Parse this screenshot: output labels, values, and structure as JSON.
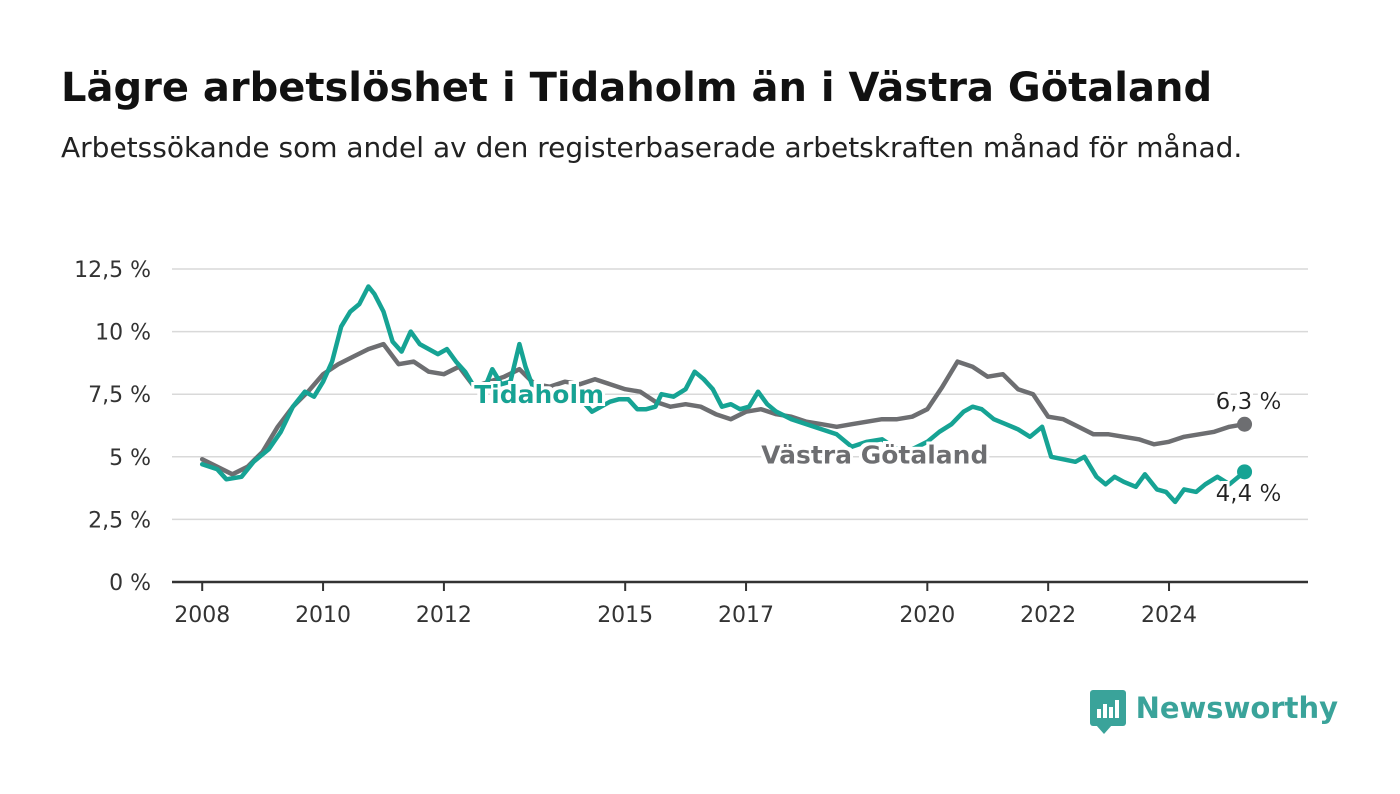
{
  "title": "Lägre arbetslöshet i Tidaholm än i Västra Götaland",
  "subtitle": "Arbetssökande som andel av den registerbaserade arbetskraften månad för månad.",
  "brand": {
    "name": "Newsworthy",
    "color": "#3aa39a"
  },
  "chart_data": {
    "type": "line",
    "ylim": [
      0,
      12.5
    ],
    "xlim": [
      2007.5,
      2026.3
    ],
    "y_ticks": [
      {
        "value": 0,
        "label": "0 %"
      },
      {
        "value": 2.5,
        "label": "2,5 %"
      },
      {
        "value": 5,
        "label": "5 %"
      },
      {
        "value": 7.5,
        "label": "7,5 %"
      },
      {
        "value": 10,
        "label": "10 %"
      },
      {
        "value": 12.5,
        "label": "12,5 %"
      }
    ],
    "x_ticks": [
      {
        "value": 2008,
        "label": "2008"
      },
      {
        "value": 2010,
        "label": "2010"
      },
      {
        "value": 2012,
        "label": "2012"
      },
      {
        "value": 2015,
        "label": "2015"
      },
      {
        "value": 2017,
        "label": "2017"
      },
      {
        "value": 2020,
        "label": "2020"
      },
      {
        "value": 2022,
        "label": "2022"
      },
      {
        "value": 2024,
        "label": "2024"
      }
    ],
    "grid": true,
    "series": [
      {
        "name": "Västra Götaland",
        "color": "#6d6e71",
        "end_label": "6,3 %",
        "label_pos": [
          2017.25,
          5.1
        ],
        "points": [
          [
            2008.0,
            4.9
          ],
          [
            2008.25,
            4.6
          ],
          [
            2008.5,
            4.3
          ],
          [
            2008.75,
            4.6
          ],
          [
            2009.0,
            5.2
          ],
          [
            2009.25,
            6.2
          ],
          [
            2009.5,
            7.0
          ],
          [
            2009.75,
            7.6
          ],
          [
            2010.0,
            8.3
          ],
          [
            2010.25,
            8.7
          ],
          [
            2010.5,
            9.0
          ],
          [
            2010.75,
            9.3
          ],
          [
            2011.0,
            9.5
          ],
          [
            2011.25,
            8.7
          ],
          [
            2011.5,
            8.8
          ],
          [
            2011.75,
            8.4
          ],
          [
            2012.0,
            8.3
          ],
          [
            2012.25,
            8.6
          ],
          [
            2012.5,
            7.8
          ],
          [
            2012.75,
            8.0
          ],
          [
            2013.0,
            8.2
          ],
          [
            2013.25,
            8.5
          ],
          [
            2013.5,
            7.9
          ],
          [
            2013.75,
            7.8
          ],
          [
            2014.0,
            8.0
          ],
          [
            2014.25,
            7.9
          ],
          [
            2014.5,
            8.1
          ],
          [
            2014.75,
            7.9
          ],
          [
            2015.0,
            7.7
          ],
          [
            2015.25,
            7.6
          ],
          [
            2015.5,
            7.2
          ],
          [
            2015.75,
            7.0
          ],
          [
            2016.0,
            7.1
          ],
          [
            2016.25,
            7.0
          ],
          [
            2016.5,
            6.7
          ],
          [
            2016.75,
            6.5
          ],
          [
            2017.0,
            6.8
          ],
          [
            2017.25,
            6.9
          ],
          [
            2017.5,
            6.7
          ],
          [
            2017.75,
            6.6
          ],
          [
            2018.0,
            6.4
          ],
          [
            2018.25,
            6.3
          ],
          [
            2018.5,
            6.2
          ],
          [
            2018.75,
            6.3
          ],
          [
            2019.0,
            6.4
          ],
          [
            2019.25,
            6.5
          ],
          [
            2019.5,
            6.5
          ],
          [
            2019.75,
            6.6
          ],
          [
            2020.0,
            6.9
          ],
          [
            2020.25,
            7.8
          ],
          [
            2020.5,
            8.8
          ],
          [
            2020.75,
            8.6
          ],
          [
            2021.0,
            8.2
          ],
          [
            2021.25,
            8.3
          ],
          [
            2021.5,
            7.7
          ],
          [
            2021.75,
            7.5
          ],
          [
            2022.0,
            6.6
          ],
          [
            2022.25,
            6.5
          ],
          [
            2022.5,
            6.2
          ],
          [
            2022.75,
            5.9
          ],
          [
            2023.0,
            5.9
          ],
          [
            2023.25,
            5.8
          ],
          [
            2023.5,
            5.7
          ],
          [
            2023.75,
            5.5
          ],
          [
            2024.0,
            5.6
          ],
          [
            2024.25,
            5.8
          ],
          [
            2024.5,
            5.9
          ],
          [
            2024.75,
            6.0
          ],
          [
            2025.0,
            6.2
          ],
          [
            2025.25,
            6.3
          ]
        ]
      },
      {
        "name": "Tidaholm",
        "color": "#16a394",
        "end_label": "4,4 %",
        "label_pos": [
          2012.5,
          7.5
        ],
        "points": [
          [
            2008.0,
            4.7
          ],
          [
            2008.25,
            4.5
          ],
          [
            2008.4,
            4.1
          ],
          [
            2008.65,
            4.2
          ],
          [
            2008.85,
            4.8
          ],
          [
            2009.1,
            5.3
          ],
          [
            2009.3,
            6.0
          ],
          [
            2009.5,
            7.0
          ],
          [
            2009.7,
            7.6
          ],
          [
            2009.85,
            7.4
          ],
          [
            2010.0,
            8.0
          ],
          [
            2010.15,
            8.8
          ],
          [
            2010.3,
            10.2
          ],
          [
            2010.45,
            10.8
          ],
          [
            2010.6,
            11.1
          ],
          [
            2010.75,
            11.8
          ],
          [
            2010.85,
            11.5
          ],
          [
            2011.0,
            10.8
          ],
          [
            2011.15,
            9.6
          ],
          [
            2011.3,
            9.2
          ],
          [
            2011.45,
            10.0
          ],
          [
            2011.6,
            9.5
          ],
          [
            2011.75,
            9.3
          ],
          [
            2011.9,
            9.1
          ],
          [
            2012.05,
            9.3
          ],
          [
            2012.2,
            8.8
          ],
          [
            2012.35,
            8.4
          ],
          [
            2012.5,
            7.8
          ],
          [
            2012.65,
            7.6
          ],
          [
            2012.8,
            8.5
          ],
          [
            2012.95,
            7.9
          ],
          [
            2013.1,
            8.0
          ],
          [
            2013.25,
            9.5
          ],
          [
            2013.35,
            8.6
          ],
          [
            2013.5,
            7.6
          ],
          [
            2013.65,
            7.4
          ],
          [
            2013.8,
            7.3
          ],
          [
            2014.0,
            7.3
          ],
          [
            2014.15,
            7.4
          ],
          [
            2014.3,
            7.2
          ],
          [
            2014.45,
            6.8
          ],
          [
            2014.6,
            7.0
          ],
          [
            2014.75,
            7.2
          ],
          [
            2014.9,
            7.3
          ],
          [
            2015.05,
            7.3
          ],
          [
            2015.2,
            6.9
          ],
          [
            2015.35,
            6.9
          ],
          [
            2015.5,
            7.0
          ],
          [
            2015.6,
            7.5
          ],
          [
            2015.8,
            7.4
          ],
          [
            2016.0,
            7.7
          ],
          [
            2016.15,
            8.4
          ],
          [
            2016.3,
            8.1
          ],
          [
            2016.45,
            7.7
          ],
          [
            2016.6,
            7.0
          ],
          [
            2016.75,
            7.1
          ],
          [
            2016.9,
            6.9
          ],
          [
            2017.05,
            7.0
          ],
          [
            2017.2,
            7.6
          ],
          [
            2017.35,
            7.1
          ],
          [
            2017.5,
            6.8
          ],
          [
            2017.75,
            6.5
          ],
          [
            2018.0,
            6.3
          ],
          [
            2018.25,
            6.1
          ],
          [
            2018.5,
            5.9
          ],
          [
            2018.75,
            5.4
          ],
          [
            2019.0,
            5.6
          ],
          [
            2019.25,
            5.7
          ],
          [
            2019.5,
            5.3
          ],
          [
            2019.75,
            5.3
          ],
          [
            2020.0,
            5.6
          ],
          [
            2020.2,
            6.0
          ],
          [
            2020.4,
            6.3
          ],
          [
            2020.6,
            6.8
          ],
          [
            2020.75,
            7.0
          ],
          [
            2020.9,
            6.9
          ],
          [
            2021.1,
            6.5
          ],
          [
            2021.3,
            6.3
          ],
          [
            2021.5,
            6.1
          ],
          [
            2021.7,
            5.8
          ],
          [
            2021.9,
            6.2
          ],
          [
            2022.05,
            5.0
          ],
          [
            2022.25,
            4.9
          ],
          [
            2022.45,
            4.8
          ],
          [
            2022.6,
            5.0
          ],
          [
            2022.8,
            4.2
          ],
          [
            2022.95,
            3.9
          ],
          [
            2023.1,
            4.2
          ],
          [
            2023.25,
            4.0
          ],
          [
            2023.45,
            3.8
          ],
          [
            2023.6,
            4.3
          ],
          [
            2023.8,
            3.7
          ],
          [
            2023.95,
            3.6
          ],
          [
            2024.1,
            3.2
          ],
          [
            2024.25,
            3.7
          ],
          [
            2024.45,
            3.6
          ],
          [
            2024.6,
            3.9
          ],
          [
            2024.8,
            4.2
          ],
          [
            2025.0,
            3.9
          ],
          [
            2025.15,
            4.2
          ],
          [
            2025.25,
            4.4
          ]
        ]
      }
    ]
  }
}
